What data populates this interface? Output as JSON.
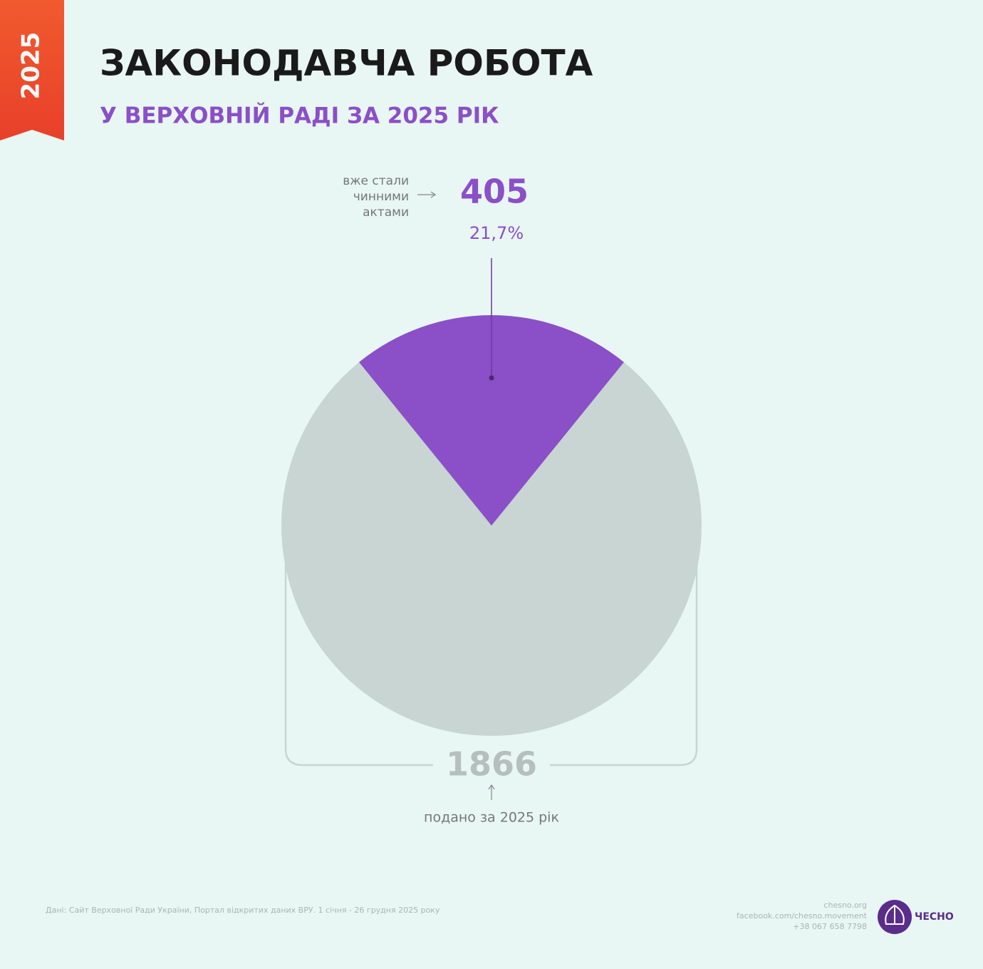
{
  "chart_data": {
    "type": "pie",
    "badge": "2025",
    "title": "ЗАКОНОДАВЧА РОБОТА",
    "subtitle": "У ВЕРХОВНІЙ РАДІ ЗА 2025 РІК",
    "slice": {
      "label_lines": [
        "вже стали",
        "чинними",
        "актами"
      ],
      "value": 405,
      "percent": 21.7,
      "percent_label": "21,7%",
      "color": "#8b4fc8"
    },
    "total": {
      "value": 1866,
      "label": "подано за 2025 рік",
      "color": "#c8d5d2"
    },
    "source": "Дані: Сайт Верховної Ради України, Портал відкритих даних ВРУ. 1 січня - 26 грудня 2025 року",
    "contacts": [
      "chesno.org",
      "facebook.com/chesno.movement",
      "+38 067 658 7798"
    ],
    "brand": "ЧЕСНО"
  }
}
